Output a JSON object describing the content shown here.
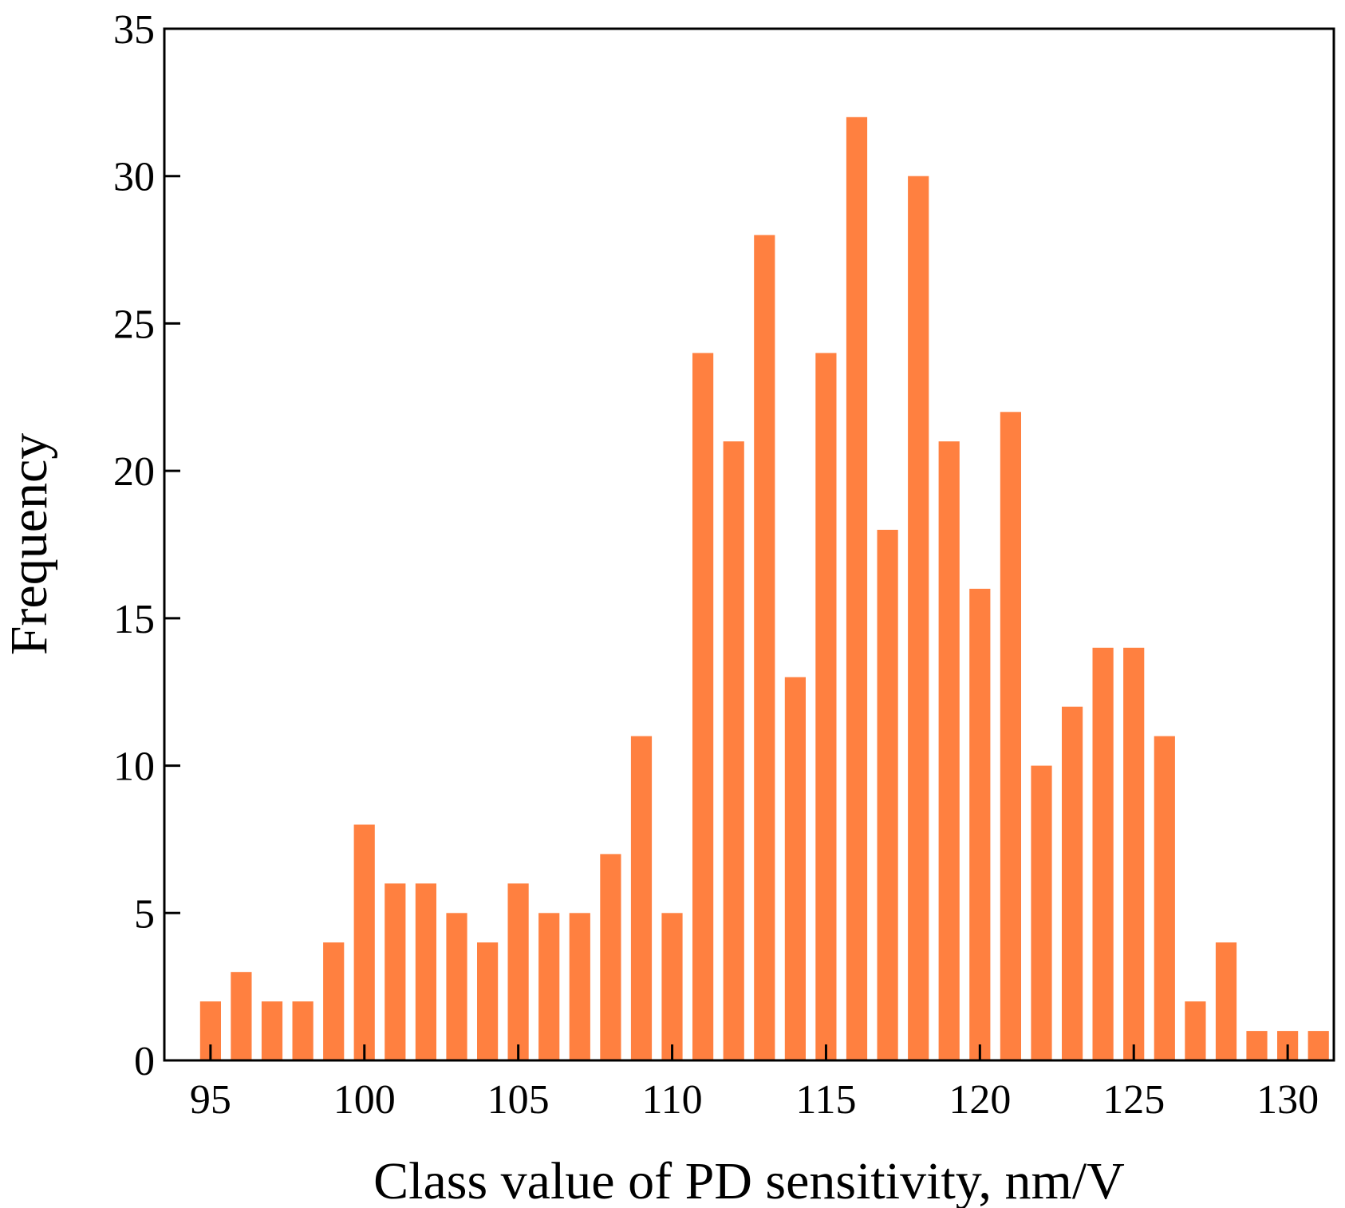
{
  "chart_data": {
    "type": "bar",
    "title": "",
    "xlabel": "Class value of PD sensitivity, nm/V",
    "ylabel": "Frequency",
    "x": [
      95,
      96,
      97,
      98,
      99,
      100,
      101,
      102,
      103,
      104,
      105,
      106,
      107,
      108,
      109,
      110,
      111,
      112,
      113,
      114,
      115,
      116,
      117,
      118,
      119,
      120,
      121,
      122,
      123,
      124,
      125,
      126,
      127,
      128,
      129,
      130,
      131
    ],
    "values": [
      2,
      3,
      2,
      2,
      4,
      8,
      6,
      6,
      5,
      4,
      6,
      5,
      5,
      7,
      11,
      5,
      24,
      21,
      28,
      13,
      24,
      32,
      18,
      30,
      21,
      16,
      22,
      10,
      12,
      14,
      14,
      11,
      2,
      4,
      1,
      1,
      1
    ],
    "xlim": [
      93.5,
      131.5
    ],
    "ylim": [
      0,
      35
    ],
    "xticks": [
      95,
      100,
      105,
      110,
      115,
      120,
      125,
      130
    ],
    "yticks": [
      0,
      5,
      10,
      15,
      20,
      25,
      30,
      35
    ],
    "grid": false,
    "legend": "none",
    "bar_color": "#ff8040",
    "axis_color": "#000000"
  }
}
